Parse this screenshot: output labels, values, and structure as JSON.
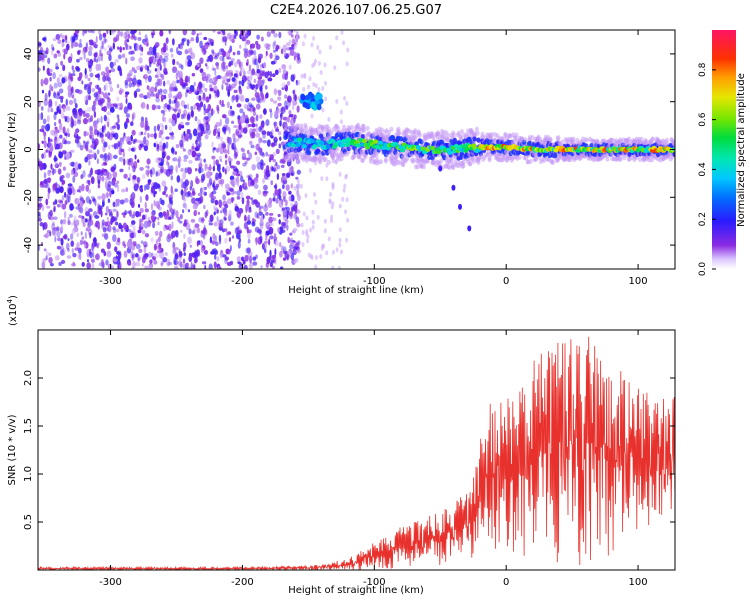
{
  "title": "C2E4.2026.107.06.25.G07",
  "chart_data": [
    {
      "type": "heatmap",
      "xlabel": "Height of straight line (km)",
      "ylabel": "Frequency (Hz)",
      "xlim": [
        -355,
        128
      ],
      "ylim": [
        -50,
        50
      ],
      "xticks": [
        -300,
        -200,
        -100,
        0,
        100
      ],
      "yticks": [
        -40,
        -20,
        0,
        20,
        40
      ],
      "features": {
        "noise_region_x": [
          -355,
          -165
        ],
        "signal_track": [
          {
            "x": -160,
            "y": 3
          },
          {
            "x": -140,
            "y": 2
          },
          {
            "x": -120,
            "y": 3
          },
          {
            "x": -100,
            "y": 2
          },
          {
            "x": -80,
            "y": 1
          },
          {
            "x": -60,
            "y": 0
          },
          {
            "x": -40,
            "y": 0
          },
          {
            "x": -20,
            "y": 1
          },
          {
            "x": 0,
            "y": 1
          },
          {
            "x": 20,
            "y": 0
          },
          {
            "x": 40,
            "y": 0
          },
          {
            "x": 60,
            "y": 0
          },
          {
            "x": 80,
            "y": 0
          },
          {
            "x": 100,
            "y": 0
          },
          {
            "x": 128,
            "y": 0
          }
        ],
        "side_blob": {
          "x": [
            -155,
            -140
          ],
          "y": [
            17,
            23
          ]
        },
        "tail_points": [
          {
            "x": -50,
            "y": -8
          },
          {
            "x": -40,
            "y": -16
          },
          {
            "x": -35,
            "y": -24
          },
          {
            "x": -28,
            "y": -33
          }
        ]
      },
      "colorbar": {
        "label": "Normalized spectral amplitude",
        "ticks": [
          "0.0",
          "0.2",
          "0.4",
          "0.6",
          "0.8"
        ],
        "range": [
          0,
          0.96
        ]
      }
    },
    {
      "type": "line",
      "xlabel": "Height of straight line (km)",
      "ylabel": "SNR (10 * v/v)",
      "scale_label": "(x10",
      "scale_exp": "4",
      "scale_close": ")",
      "xlim": [
        -355,
        128
      ],
      "ylim": [
        0,
        2.5
      ],
      "xticks": [
        -300,
        -200,
        -100,
        0,
        100
      ],
      "yticks": [
        "0.5",
        "1.0",
        "1.5",
        "2.0"
      ],
      "color": "#e8312c",
      "envelope": [
        {
          "x": -355,
          "lo": 0.0,
          "hi": 0.03
        },
        {
          "x": -200,
          "lo": 0.0,
          "hi": 0.03
        },
        {
          "x": -160,
          "lo": 0.0,
          "hi": 0.04
        },
        {
          "x": -140,
          "lo": 0.0,
          "hi": 0.06
        },
        {
          "x": -120,
          "lo": 0.0,
          "hi": 0.12
        },
        {
          "x": -100,
          "lo": 0.0,
          "hi": 0.3
        },
        {
          "x": -80,
          "lo": 0.02,
          "hi": 0.45
        },
        {
          "x": -60,
          "lo": 0.05,
          "hi": 0.55
        },
        {
          "x": -40,
          "lo": 0.05,
          "hi": 0.7
        },
        {
          "x": -25,
          "lo": 0.1,
          "hi": 0.95
        },
        {
          "x": -15,
          "lo": 0.2,
          "hi": 1.7
        },
        {
          "x": 0,
          "lo": 0.2,
          "hi": 1.9
        },
        {
          "x": 20,
          "lo": 0.1,
          "hi": 2.2
        },
        {
          "x": 40,
          "lo": 0.05,
          "hi": 2.5
        },
        {
          "x": 60,
          "lo": 0.05,
          "hi": 2.5
        },
        {
          "x": 80,
          "lo": 0.15,
          "hi": 2.2
        },
        {
          "x": 100,
          "lo": 0.4,
          "hi": 1.9
        },
        {
          "x": 128,
          "lo": 0.6,
          "hi": 1.8
        }
      ]
    }
  ]
}
